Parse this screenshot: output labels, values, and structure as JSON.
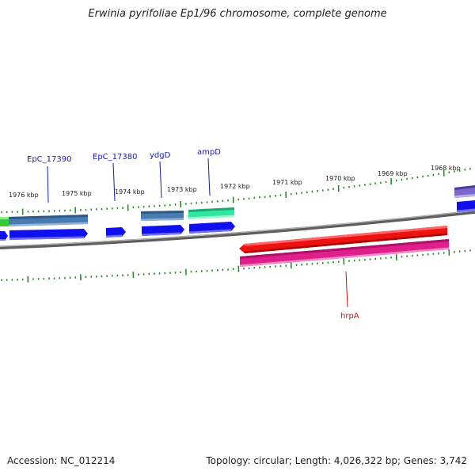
{
  "title": "Erwinia pyrifoliae Ep1/96 chromosome, complete genome",
  "footer": {
    "accession": "Accession: NC_012214",
    "summary": "Topology: circular; Length: 4,026,322 bp; Genes: 3,742"
  },
  "kbp_labels": [
    "1976 kbp",
    "1975 kbp",
    "1974 kbp",
    "1973 kbp",
    "1972 kbp",
    "1971 kbp",
    "1970 kbp",
    "1969 kbp",
    "1968 kbp"
  ],
  "gene_labels": [
    "EpC_17390",
    "EpC_17380",
    "ydgD",
    "ampD",
    "hrpA"
  ],
  "colors": {
    "tick": "#2a8a2a",
    "backbone": "#7a7a7a",
    "cds_blue": "#1010ee",
    "gene_steel": "#4a7bb0",
    "gene_cyan_green": "#2ee8a0",
    "gene_green": "#33cc33",
    "gene_purple": "#7a66cc",
    "gene_red": "#ee1111",
    "gene_magenta": "#e0208a",
    "label_blue": "#1a1aa8",
    "label_red": "#cc1111"
  }
}
